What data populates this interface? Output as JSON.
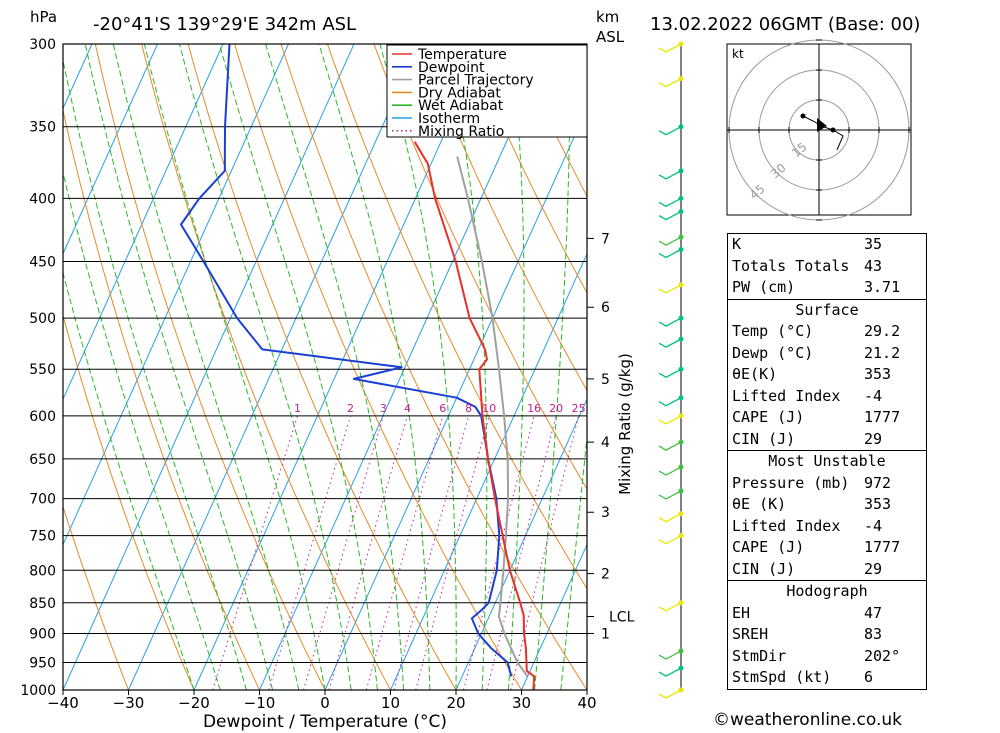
{
  "header": {
    "pressure_unit": "hPa",
    "location": "-20°41'S 139°29'E 342m ASL",
    "height_unit_top": "km",
    "height_unit_bottom": "ASL",
    "datetime": "13.02.2022 06GMT (Base: 00)"
  },
  "chart_data": {
    "type": "skew-t",
    "xlabel": "Dewpoint / Temperature (°C)",
    "mixing_ratio_label": "Mixing Ratio (g/kg)",
    "x_ticks": [
      -40,
      -30,
      -20,
      -10,
      0,
      10,
      20,
      30,
      40
    ],
    "x_tick_labels": [
      "−40",
      "−30",
      "−20",
      "−10",
      "0",
      "10",
      "20",
      "30",
      "40"
    ],
    "p_ticks": [
      300,
      350,
      400,
      450,
      500,
      550,
      600,
      650,
      700,
      750,
      800,
      850,
      900,
      950,
      1000
    ],
    "p_range": [
      300,
      1000
    ],
    "t_range_bottom": [
      -40,
      40
    ],
    "height_km_labels": [
      {
        "label": "7",
        "p": 431
      },
      {
        "label": "6",
        "p": 490
      },
      {
        "label": "5",
        "p": 560
      },
      {
        "label": "4",
        "p": 630
      },
      {
        "label": "3",
        "p": 718
      },
      {
        "label": "2",
        "p": 805
      },
      {
        "label": "LCL",
        "p": 872
      },
      {
        "label": "1",
        "p": 900
      }
    ],
    "mixing_ratio_values": [
      "1",
      "2",
      "3",
      "4",
      "6",
      "8",
      "10",
      "16",
      "20",
      "25"
    ],
    "mixing_ratio_numbers": [
      1,
      2,
      3,
      4,
      6,
      8,
      10,
      16,
      20,
      25
    ],
    "legend": [
      {
        "name": "Temperature",
        "color": "#e8302a",
        "style": "solid"
      },
      {
        "name": "Dewpoint",
        "color": "#1a3fd4",
        "style": "solid"
      },
      {
        "name": "Parcel Trajectory",
        "color": "#a0a0a0",
        "style": "solid"
      },
      {
        "name": "Dry Adiabat",
        "color": "#e88a2a",
        "style": "solid"
      },
      {
        "name": "Wet Adiabat",
        "color": "#2ab82a",
        "style": "solid"
      },
      {
        "name": "Isotherm",
        "color": "#2aa0e8",
        "style": "solid"
      },
      {
        "name": "Mixing Ratio",
        "color": "#c02090",
        "style": "dotted"
      }
    ],
    "temperature": [
      [
        1000,
        31.8
      ],
      [
        975,
        31.0
      ],
      [
        965,
        29.5
      ],
      [
        925,
        27.8
      ],
      [
        900,
        26.5
      ],
      [
        870,
        25.2
      ],
      [
        850,
        23.8
      ],
      [
        800,
        20.0
      ],
      [
        750,
        16.5
      ],
      [
        700,
        12.8
      ],
      [
        650,
        9.0
      ],
      [
        600,
        5.2
      ],
      [
        550,
        1.5
      ],
      [
        540,
        2.0
      ],
      [
        530,
        1.0
      ],
      [
        500,
        -3.5
      ],
      [
        450,
        -9.5
      ],
      [
        400,
        -17.0
      ],
      [
        375,
        -20.5
      ],
      [
        360,
        -24.0
      ]
    ],
    "dewpoint": [
      [
        975,
        27.5
      ],
      [
        950,
        26.0
      ],
      [
        925,
        22.5
      ],
      [
        900,
        19.5
      ],
      [
        875,
        17.5
      ],
      [
        860,
        18.5
      ],
      [
        850,
        19.0
      ],
      [
        800,
        18.0
      ],
      [
        750,
        16.0
      ],
      [
        700,
        13.0
      ],
      [
        650,
        9.0
      ],
      [
        600,
        5.0
      ],
      [
        590,
        3.5
      ],
      [
        580,
        0.0
      ],
      [
        560,
        -17.0
      ],
      [
        548,
        -10.5
      ],
      [
        530,
        -33.0
      ],
      [
        500,
        -39.0
      ],
      [
        450,
        -48.0
      ],
      [
        420,
        -54.0
      ],
      [
        400,
        -53.0
      ],
      [
        380,
        -51.0
      ],
      [
        350,
        -54.0
      ],
      [
        300,
        -59.0
      ]
    ],
    "parcel": [
      [
        975,
        30.0
      ],
      [
        950,
        27.5
      ],
      [
        900,
        23.5
      ],
      [
        872,
        21.5
      ],
      [
        850,
        20.8
      ],
      [
        800,
        19.0
      ],
      [
        750,
        17.0
      ],
      [
        700,
        14.8
      ],
      [
        650,
        12.0
      ],
      [
        600,
        8.5
      ],
      [
        550,
        4.5
      ],
      [
        500,
        0.0
      ],
      [
        450,
        -5.5
      ],
      [
        400,
        -12.0
      ],
      [
        370,
        -16.5
      ]
    ],
    "wind_colors": [
      "#e8e800",
      "#00c080",
      "#40c040"
    ],
    "hodograph": {
      "unit": "kt",
      "rings": [
        "15",
        "30",
        "45"
      ]
    },
    "indices": {
      "k_label": "K",
      "k": "35",
      "tt_label": "Totals Totals",
      "tt": "43",
      "pw_label": "PW (cm)",
      "pw": "3.71"
    },
    "surface": {
      "title": "Surface",
      "temp_label": "Temp (°C)",
      "temp": "29.2",
      "dewp_label": "Dewp (°C)",
      "dewp": "21.2",
      "thetae_label": "θE(K)",
      "thetae": "353",
      "li_label": "Lifted Index",
      "li": "-4",
      "cape_label": "CAPE (J)",
      "cape": "1777",
      "cin_label": "CIN (J)",
      "cin": "29"
    },
    "most_unstable": {
      "title": "Most Unstable",
      "pres_label": "Pressure (mb)",
      "pres": "972",
      "thetae_label": "θE (K)",
      "thetae": "353",
      "li_label": "Lifted Index",
      "li": "-4",
      "cape_label": "CAPE (J)",
      "cape": "1777",
      "cin_label": "CIN (J)",
      "cin": "29"
    },
    "hodo_params": {
      "title": "Hodograph",
      "eh_label": "EH",
      "eh": "47",
      "sreh_label": "SREH",
      "sreh": "83",
      "stmdir_label": "StmDir",
      "stmdir": "202°",
      "stmspd_label": "StmSpd (kt)",
      "stmspd": "6"
    }
  },
  "footer": {
    "credit": "©weatheronline.co.uk"
  }
}
